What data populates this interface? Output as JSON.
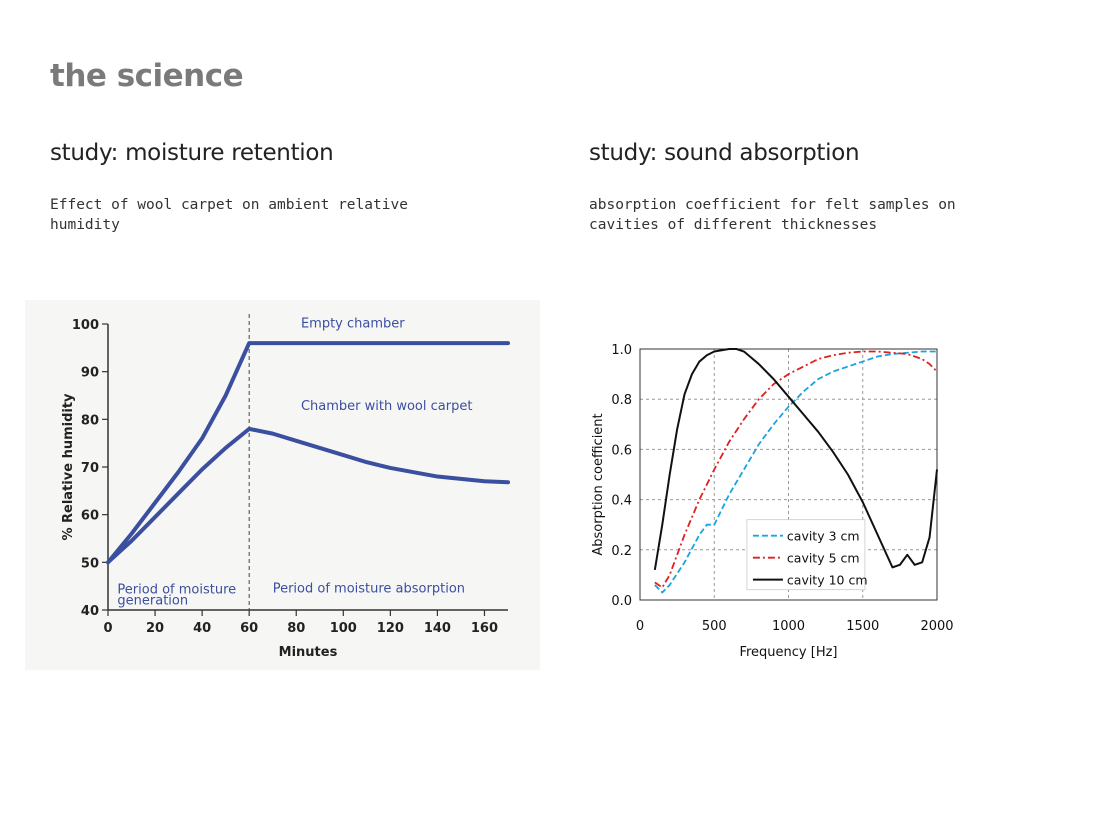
{
  "page": {
    "title": "the science"
  },
  "left_study": {
    "heading": "study: moisture retention",
    "description": "Effect of wool carpet on ambient relative humidity"
  },
  "right_study": {
    "heading": "study: sound absorption",
    "description": "absorption coefficient for felt samples on cavities of different thicknesses"
  },
  "chart_data": [
    {
      "type": "line",
      "xlabel": "Minutes",
      "ylabel": "% Relative humidity",
      "xlim": [
        0,
        170
      ],
      "ylim": [
        40,
        100
      ],
      "x_ticks": [
        0,
        20,
        40,
        60,
        80,
        100,
        120,
        140,
        160
      ],
      "y_ticks": [
        40,
        50,
        60,
        70,
        80,
        90,
        100
      ],
      "color": "#3b4fa0",
      "series": [
        {
          "name": "Empty chamber",
          "x": [
            0,
            10,
            20,
            30,
            40,
            50,
            60,
            100,
            140,
            170
          ],
          "y": [
            50,
            56,
            62.5,
            69,
            76,
            85,
            96,
            96,
            96,
            96
          ]
        },
        {
          "name": "Chamber with wool carpet",
          "x": [
            0,
            10,
            20,
            30,
            40,
            50,
            60,
            70,
            80,
            90,
            100,
            110,
            120,
            140,
            160,
            170
          ],
          "y": [
            50,
            54.5,
            59.5,
            64.5,
            69.5,
            74,
            78,
            77,
            75.5,
            74,
            72.5,
            71,
            69.8,
            68,
            67,
            66.8
          ]
        }
      ],
      "divider_x": 60,
      "annotations": {
        "empty_label": "Empty chamber",
        "carpet_label": "Chamber with wool carpet",
        "generation_line1": "Period of moisture",
        "generation_line2": "generation",
        "absorption_label": "Period of moisture absorption"
      }
    },
    {
      "type": "line",
      "xlabel": "Frequency [Hz]",
      "ylabel": "Absorption coefficient",
      "xlim": [
        0,
        2000
      ],
      "ylim": [
        0,
        1
      ],
      "x_ticks": [
        0,
        500,
        1000,
        1500,
        2000
      ],
      "y_ticks": [
        0.0,
        0.2,
        0.4,
        0.6,
        0.8,
        1.0
      ],
      "y_tick_labels": [
        "0.0",
        "0.2",
        "0.4",
        "0.6",
        "0.8",
        "1.0"
      ],
      "grid": true,
      "series": [
        {
          "name": "cavity 3 cm",
          "style": "dashed",
          "color": "#1aa3e0",
          "x": [
            100,
            150,
            200,
            300,
            400,
            450,
            500,
            600,
            700,
            800,
            900,
            1000,
            1100,
            1200,
            1300,
            1400,
            1500,
            1600,
            1700,
            1800,
            1900,
            2000
          ],
          "y": [
            0.06,
            0.03,
            0.06,
            0.15,
            0.26,
            0.3,
            0.3,
            0.42,
            0.52,
            0.62,
            0.7,
            0.77,
            0.83,
            0.88,
            0.91,
            0.93,
            0.95,
            0.97,
            0.98,
            0.985,
            0.99,
            0.99
          ]
        },
        {
          "name": "cavity 5 cm",
          "style": "dashdot",
          "color": "#e02020",
          "x": [
            100,
            150,
            200,
            300,
            400,
            500,
            600,
            700,
            800,
            900,
            1000,
            1100,
            1200,
            1300,
            1400,
            1500,
            1600,
            1700,
            1800,
            1900,
            1950,
            2000
          ],
          "y": [
            0.07,
            0.05,
            0.1,
            0.26,
            0.4,
            0.52,
            0.63,
            0.72,
            0.8,
            0.86,
            0.9,
            0.93,
            0.96,
            0.975,
            0.985,
            0.99,
            0.99,
            0.985,
            0.98,
            0.96,
            0.94,
            0.91
          ]
        },
        {
          "name": "cavity 10 cm",
          "style": "solid",
          "color": "#111111",
          "x": [
            100,
            150,
            200,
            250,
            300,
            350,
            400,
            450,
            500,
            550,
            600,
            650,
            700,
            750,
            800,
            900,
            1000,
            1100,
            1200,
            1300,
            1400,
            1500,
            1600,
            1700,
            1750,
            1800,
            1850,
            1900,
            1950,
            2000
          ],
          "y": [
            0.12,
            0.3,
            0.5,
            0.68,
            0.82,
            0.9,
            0.95,
            0.975,
            0.99,
            0.995,
            1.0,
            1.0,
            0.99,
            0.965,
            0.94,
            0.88,
            0.81,
            0.74,
            0.67,
            0.59,
            0.5,
            0.39,
            0.26,
            0.13,
            0.14,
            0.18,
            0.14,
            0.15,
            0.25,
            0.52
          ]
        }
      ]
    }
  ]
}
